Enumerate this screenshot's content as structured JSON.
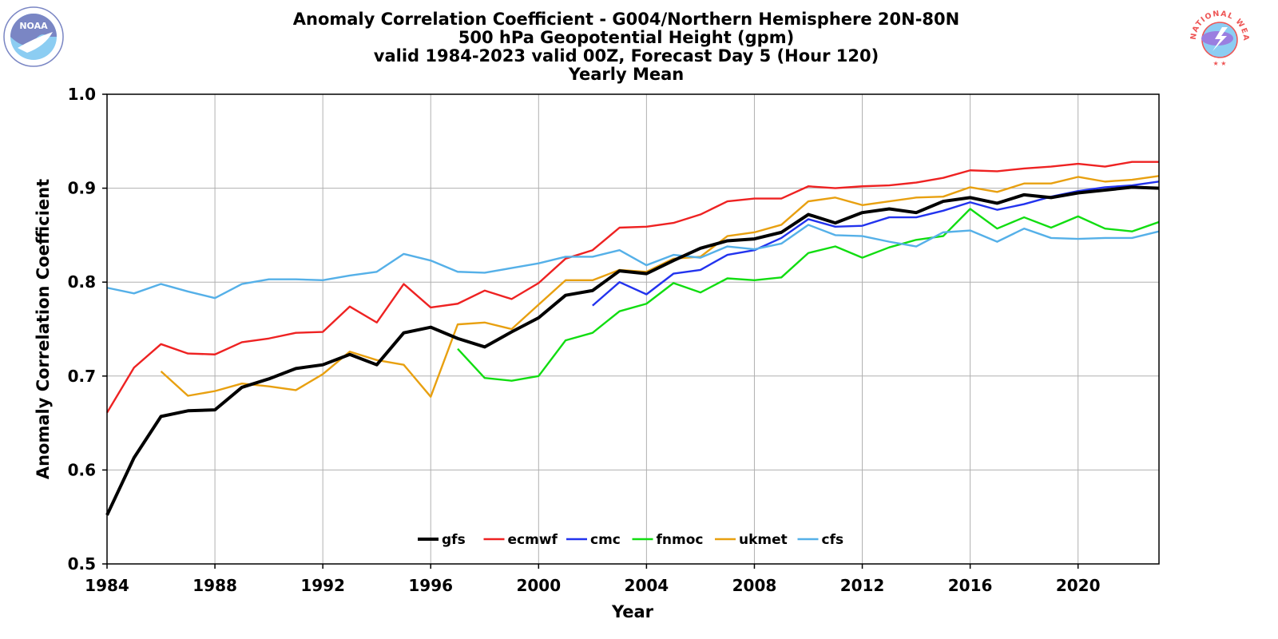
{
  "chart_data": {
    "type": "line",
    "title_lines": [
      "Anomaly Correlation Coefficient - G004/Northern Hemisphere 20N-80N",
      "500 hPa Geopotential Height (gpm)",
      "valid 1984-2023 valid 00Z, Forecast Day 5 (Hour 120)",
      "Yearly Mean"
    ],
    "xlabel": "Year",
    "ylabel": "Anomaly Correlation Coefficient",
    "xlim": [
      1984,
      2023
    ],
    "ylim": [
      0.5,
      1.0
    ],
    "xticks": [
      1984,
      1988,
      1992,
      1996,
      2000,
      2004,
      2008,
      2012,
      2016,
      2020
    ],
    "yticks": [
      0.5,
      0.6,
      0.7,
      0.8,
      0.9,
      1.0
    ],
    "xtick_labels": [
      "1984",
      "1988",
      "1992",
      "1996",
      "2000",
      "2004",
      "2008",
      "2012",
      "2016",
      "2020"
    ],
    "ytick_labels": [
      "0.5",
      "0.6",
      "0.7",
      "0.8",
      "0.9",
      "1.0"
    ],
    "grid": true,
    "legend_position": "bottom-center",
    "series": [
      {
        "name": "gfs",
        "color": "#000000",
        "x_start": 1984,
        "values": [
          0.552,
          0.613,
          0.657,
          0.663,
          0.664,
          0.688,
          0.697,
          0.708,
          0.712,
          0.723,
          0.712,
          0.746,
          0.752,
          0.74,
          0.731,
          0.747,
          0.762,
          0.786,
          0.791,
          0.812,
          0.809,
          0.823,
          0.836,
          0.844,
          0.846,
          0.853,
          0.872,
          0.863,
          0.874,
          0.878,
          0.874,
          0.886,
          0.89,
          0.884,
          0.893,
          0.89,
          0.895,
          0.898,
          0.901,
          0.9
        ]
      },
      {
        "name": "ecmwf",
        "color": "#ee2222",
        "x_start": 1984,
        "values": [
          0.661,
          0.709,
          0.734,
          0.724,
          0.723,
          0.736,
          0.74,
          0.746,
          0.747,
          0.774,
          0.757,
          0.798,
          0.773,
          0.777,
          0.791,
          0.782,
          0.799,
          0.825,
          0.834,
          0.858,
          0.859,
          0.863,
          0.872,
          0.886,
          0.889,
          0.889,
          0.902,
          0.9,
          0.902,
          0.903,
          0.906,
          0.911,
          0.919,
          0.918,
          0.921,
          0.923,
          0.926,
          0.923,
          0.928,
          0.928
        ]
      },
      {
        "name": "cmc",
        "color": "#2233ee",
        "x_start": 2002,
        "values": [
          0.775,
          0.8,
          0.787,
          0.809,
          0.813,
          0.829,
          0.834,
          0.847,
          0.867,
          0.859,
          0.86,
          0.869,
          0.869,
          0.876,
          0.885,
          0.877,
          0.883,
          0.891,
          0.897,
          0.901,
          0.903,
          0.907
        ]
      },
      {
        "name": "fnmoc",
        "color": "#11dd11",
        "x_start": 1997,
        "values": [
          0.729,
          0.698,
          0.695,
          0.7,
          0.738,
          0.746,
          0.769,
          0.777,
          0.799,
          0.789,
          0.804,
          0.802,
          0.805,
          0.831,
          0.838,
          0.826,
          0.837,
          0.845,
          0.849,
          0.878,
          0.857,
          0.869,
          0.858,
          0.87,
          0.857,
          0.854,
          0.864
        ]
      },
      {
        "name": "ukmet",
        "color": "#e8a010",
        "x_start": 1986,
        "values": [
          0.705,
          0.679,
          0.684,
          0.692,
          0.689,
          0.685,
          0.702,
          0.726,
          0.717,
          0.712,
          0.678,
          0.755,
          0.757,
          0.75,
          0.776,
          0.802,
          0.802,
          0.813,
          0.811,
          0.825,
          0.827,
          0.849,
          0.853,
          0.861,
          0.886,
          0.89,
          0.882,
          0.886,
          0.89,
          0.891,
          0.901,
          0.896,
          0.905,
          0.905,
          0.912,
          0.907,
          0.909,
          0.913
        ]
      },
      {
        "name": "cfs",
        "color": "#55b0e8",
        "x_start": 1984,
        "values": [
          0.794,
          0.788,
          0.798,
          0.79,
          0.783,
          0.798,
          0.803,
          0.803,
          0.802,
          0.807,
          0.811,
          0.83,
          0.823,
          0.811,
          0.81,
          0.815,
          0.82,
          0.827,
          0.827,
          0.834,
          0.818,
          0.829,
          0.826,
          0.838,
          0.835,
          0.841,
          0.861,
          0.85,
          0.849,
          0.843,
          0.838,
          0.853,
          0.855,
          0.843,
          0.857,
          0.847,
          0.846,
          0.847,
          0.847,
          0.854
        ]
      }
    ]
  },
  "logos": {
    "left": {
      "icon": "noaa-logo-icon",
      "text": "NOAA",
      "colors": [
        "#7a86c4",
        "#8ccdf2"
      ]
    },
    "right": {
      "icon": "nws-logo-icon",
      "ring_text": "NATIONAL WEATHER SERVICE",
      "colors": [
        "#ee5555",
        "#8ccdf2",
        "#9a7ee0"
      ]
    }
  }
}
